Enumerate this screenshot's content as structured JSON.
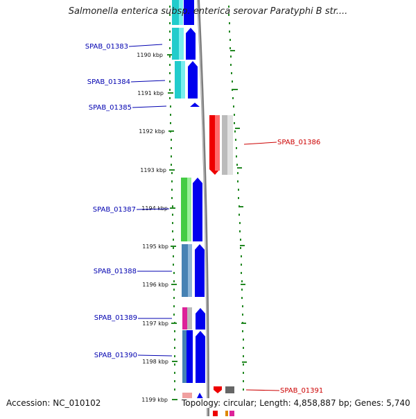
{
  "title": "Salmonella enterica subsp. enterica serovar Paratyphi B str....",
  "footer": {
    "accession": "Accession: NC_010102",
    "topology": "Topology: circular; Length: 4,858,887 bp; Genes: 5,740"
  },
  "ticks": [
    "1190 kbp",
    "1191 kbp",
    "1192 kbp",
    "1193 kbp",
    "1194 kbp",
    "1195 kbp",
    "1196 kbp",
    "1197 kbp",
    "1198 kbp",
    "1199 kbp"
  ],
  "genes_left": [
    "SPAB_01383",
    "SPAB_01384",
    "SPAB_01385",
    "SPAB_01387",
    "SPAB_01388",
    "SPAB_01389",
    "SPAB_01390"
  ],
  "genes_right": [
    "SPAB_01386",
    "SPAB_01391"
  ],
  "colors": {
    "left_label": "#0000b0",
    "right_label": "#cc0000",
    "tick": "#228822",
    "backbone": "#999999",
    "cds_forward": "#0000ee",
    "cds_reverse": "#ee0000",
    "cyan": "#22cccc",
    "green": "#44cc44",
    "steelblue": "#4682b4",
    "magenta": "#dd2299",
    "gray": "#bbbbbb"
  }
}
